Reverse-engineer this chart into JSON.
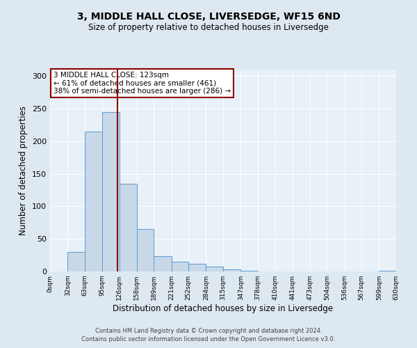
{
  "title": "3, MIDDLE HALL CLOSE, LIVERSEDGE, WF15 6ND",
  "subtitle": "Size of property relative to detached houses in Liversedge",
  "xlabel": "Distribution of detached houses by size in Liversedge",
  "ylabel": "Number of detached properties",
  "bar_edges": [
    0,
    32,
    63,
    95,
    126,
    158,
    189,
    221,
    252,
    284,
    315,
    347,
    378,
    410,
    441,
    473,
    504,
    536,
    567,
    599,
    630
  ],
  "bar_heights": [
    0,
    30,
    215,
    245,
    135,
    65,
    23,
    15,
    12,
    8,
    3,
    1,
    0,
    0,
    0,
    0,
    0,
    0,
    0,
    1
  ],
  "bar_color": "#c8d8e8",
  "bar_edge_color": "#5b9bd5",
  "vline_x": 123,
  "vline_color": "#8b0000",
  "annotation_title": "3 MIDDLE HALL CLOSE: 123sqm",
  "annotation_line1": "← 61% of detached houses are smaller (461)",
  "annotation_line2": "38% of semi-detached houses are larger (286) →",
  "annotation_box_color": "#8b0000",
  "ylim": [
    0,
    310
  ],
  "yticks": [
    0,
    50,
    100,
    150,
    200,
    250,
    300
  ],
  "tick_labels": [
    "0sqm",
    "32sqm",
    "63sqm",
    "95sqm",
    "126sqm",
    "158sqm",
    "189sqm",
    "221sqm",
    "252sqm",
    "284sqm",
    "315sqm",
    "347sqm",
    "378sqm",
    "410sqm",
    "441sqm",
    "473sqm",
    "504sqm",
    "536sqm",
    "567sqm",
    "599sqm",
    "630sqm"
  ],
  "footer1": "Contains HM Land Registry data © Crown copyright and database right 2024.",
  "footer2": "Contains public sector information licensed under the Open Government Licence v3.0.",
  "bg_color": "#dde8f0",
  "plot_bg_color": "#e8f0f8"
}
